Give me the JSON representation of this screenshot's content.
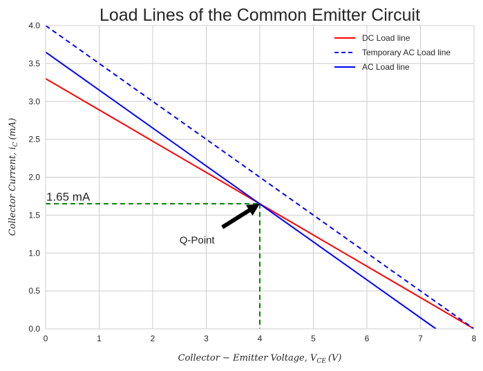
{
  "chart_data": {
    "type": "line",
    "title": "Load Lines of the Common Emitter Circuit",
    "xlabel": "Collector − Emitter Voltage, V",
    "xlabel_sub": "CE",
    "xlabel_unit": "(V)",
    "ylabel": "Collector Current, i",
    "ylabel_sub": "C",
    "ylabel_unit": "(mA)",
    "xlim": [
      0,
      8
    ],
    "ylim": [
      0,
      4
    ],
    "xticks": [
      0,
      1,
      2,
      3,
      4,
      5,
      6,
      7,
      8
    ],
    "yticks": [
      0.0,
      0.5,
      1.0,
      1.5,
      2.0,
      2.5,
      3.0,
      3.5,
      4.0
    ],
    "xtick_labels": [
      "0",
      "1",
      "2",
      "3",
      "4",
      "5",
      "6",
      "7",
      "8"
    ],
    "ytick_labels": [
      "0.0",
      "0.5",
      "1.0",
      "1.5",
      "2.0",
      "2.5",
      "3.0",
      "3.5",
      "4.0"
    ],
    "grid": true,
    "legend_position": "top-right",
    "series": [
      {
        "name": "DC Load line",
        "color": "#ff0000",
        "dash": "solid",
        "x": [
          0,
          8
        ],
        "y": [
          3.3,
          0
        ]
      },
      {
        "name": "Temporary AC Load line",
        "color": "#0000ff",
        "dash": "dashed",
        "x": [
          0,
          8
        ],
        "y": [
          4.0,
          0
        ]
      },
      {
        "name": "AC Load line",
        "color": "#0000ff",
        "dash": "solid",
        "x": [
          0,
          7.29
        ],
        "y": [
          3.65,
          0
        ]
      }
    ],
    "guides": [
      {
        "color": "#008000",
        "dash": "dashed",
        "x": [
          0,
          4
        ],
        "y": [
          1.65,
          1.65
        ]
      },
      {
        "color": "#008000",
        "dash": "dashed",
        "x": [
          4,
          4
        ],
        "y": [
          1.65,
          0
        ]
      }
    ],
    "annotations": [
      {
        "text": "1.65 mA",
        "x": 0.0,
        "y": 1.67
      },
      {
        "text": "Q-Point",
        "x": 2.5,
        "y": 1.18,
        "arrow_to": [
          4.0,
          1.65
        ],
        "arrow_from": [
          3.3,
          1.34
        ]
      }
    ]
  }
}
